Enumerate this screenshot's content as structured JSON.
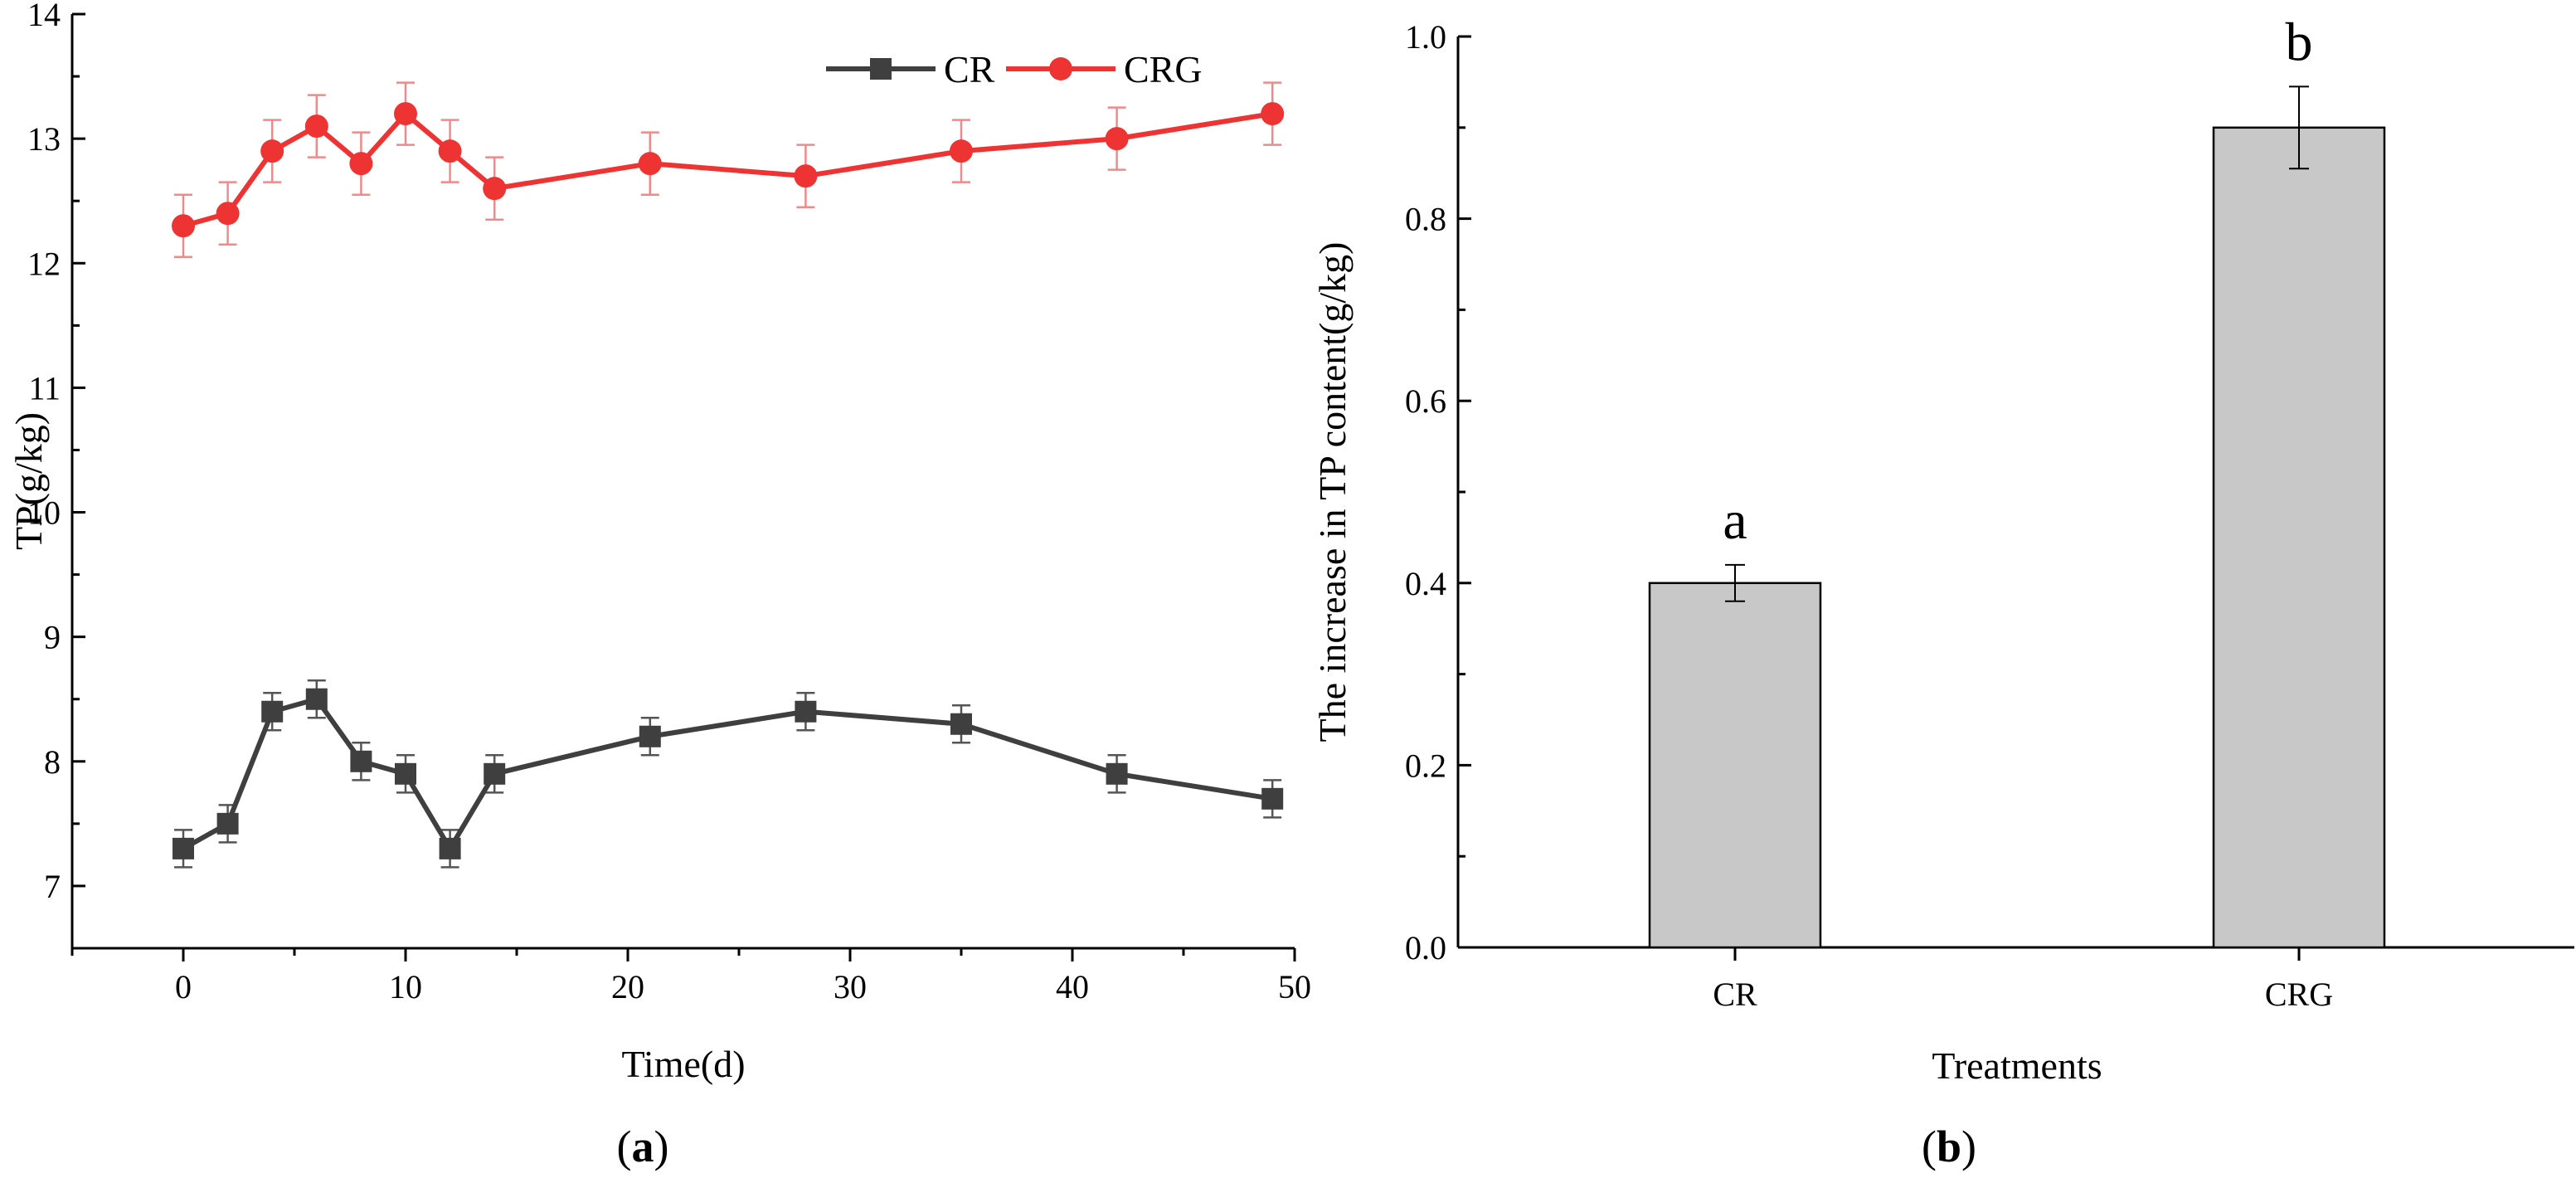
{
  "panels": {
    "a": {
      "label_open": "(",
      "label_letter": "a",
      "label_close": ")"
    },
    "b": {
      "label_open": "(",
      "label_letter": "b",
      "label_close": ")"
    }
  },
  "colors": {
    "axis": "#000000",
    "cr": "#3f3f3f",
    "crg": "#ee3333",
    "crg_err": "#f08a8a",
    "bar_fill": "#c8c8c8",
    "bar_stroke": "#000000"
  },
  "chart_data": [
    {
      "id": "a",
      "type": "line",
      "title": "",
      "xlabel": "Time(d)",
      "ylabel": "TP(g/kg)",
      "xlim": [
        -5,
        50
      ],
      "ylim": [
        6.5,
        14
      ],
      "xticks": [
        0,
        10,
        20,
        30,
        40,
        50
      ],
      "xtick_labels": [
        "0",
        "10",
        "20",
        "30",
        "40",
        "50"
      ],
      "yticks": [
        7,
        8,
        9,
        10,
        11,
        12,
        13,
        14
      ],
      "ytick_labels": [
        "7",
        "8",
        "9",
        "10",
        "11",
        "12",
        "13",
        "14"
      ],
      "legend_position": "top-right",
      "x": [
        0,
        2,
        4,
        6,
        8,
        10,
        12,
        14,
        21,
        28,
        35,
        42,
        49
      ],
      "series": [
        {
          "name": "CR",
          "marker": "square",
          "color": "#3f3f3f",
          "values": [
            7.3,
            7.5,
            8.4,
            8.5,
            8.0,
            7.9,
            7.3,
            7.9,
            8.2,
            8.4,
            8.3,
            7.9,
            7.7
          ],
          "errors": [
            0.15,
            0.15,
            0.15,
            0.15,
            0.15,
            0.15,
            0.15,
            0.15,
            0.15,
            0.15,
            0.15,
            0.15,
            0.15
          ]
        },
        {
          "name": "CRG",
          "marker": "circle",
          "color": "#ee3333",
          "values": [
            12.3,
            12.4,
            12.9,
            13.1,
            12.8,
            13.2,
            12.9,
            12.6,
            12.8,
            12.7,
            12.9,
            13.0,
            13.2
          ],
          "errors": [
            0.25,
            0.25,
            0.25,
            0.25,
            0.25,
            0.25,
            0.25,
            0.25,
            0.25,
            0.25,
            0.25,
            0.25,
            0.25
          ]
        }
      ]
    },
    {
      "id": "b",
      "type": "bar",
      "title": "",
      "xlabel": "Treatments",
      "ylabel": "The increase in TP content(g/kg)",
      "ylim": [
        0.0,
        1.0
      ],
      "yticks": [
        0.0,
        0.2,
        0.4,
        0.6,
        0.8,
        1.0
      ],
      "ytick_labels": [
        "0.0",
        "0.2",
        "0.4",
        "0.6",
        "0.8",
        "1.0"
      ],
      "categories": [
        "CR",
        "CRG"
      ],
      "values": [
        0.4,
        0.9
      ],
      "errors": [
        0.02,
        0.045
      ],
      "significance_letters": [
        "a",
        "b"
      ]
    }
  ]
}
